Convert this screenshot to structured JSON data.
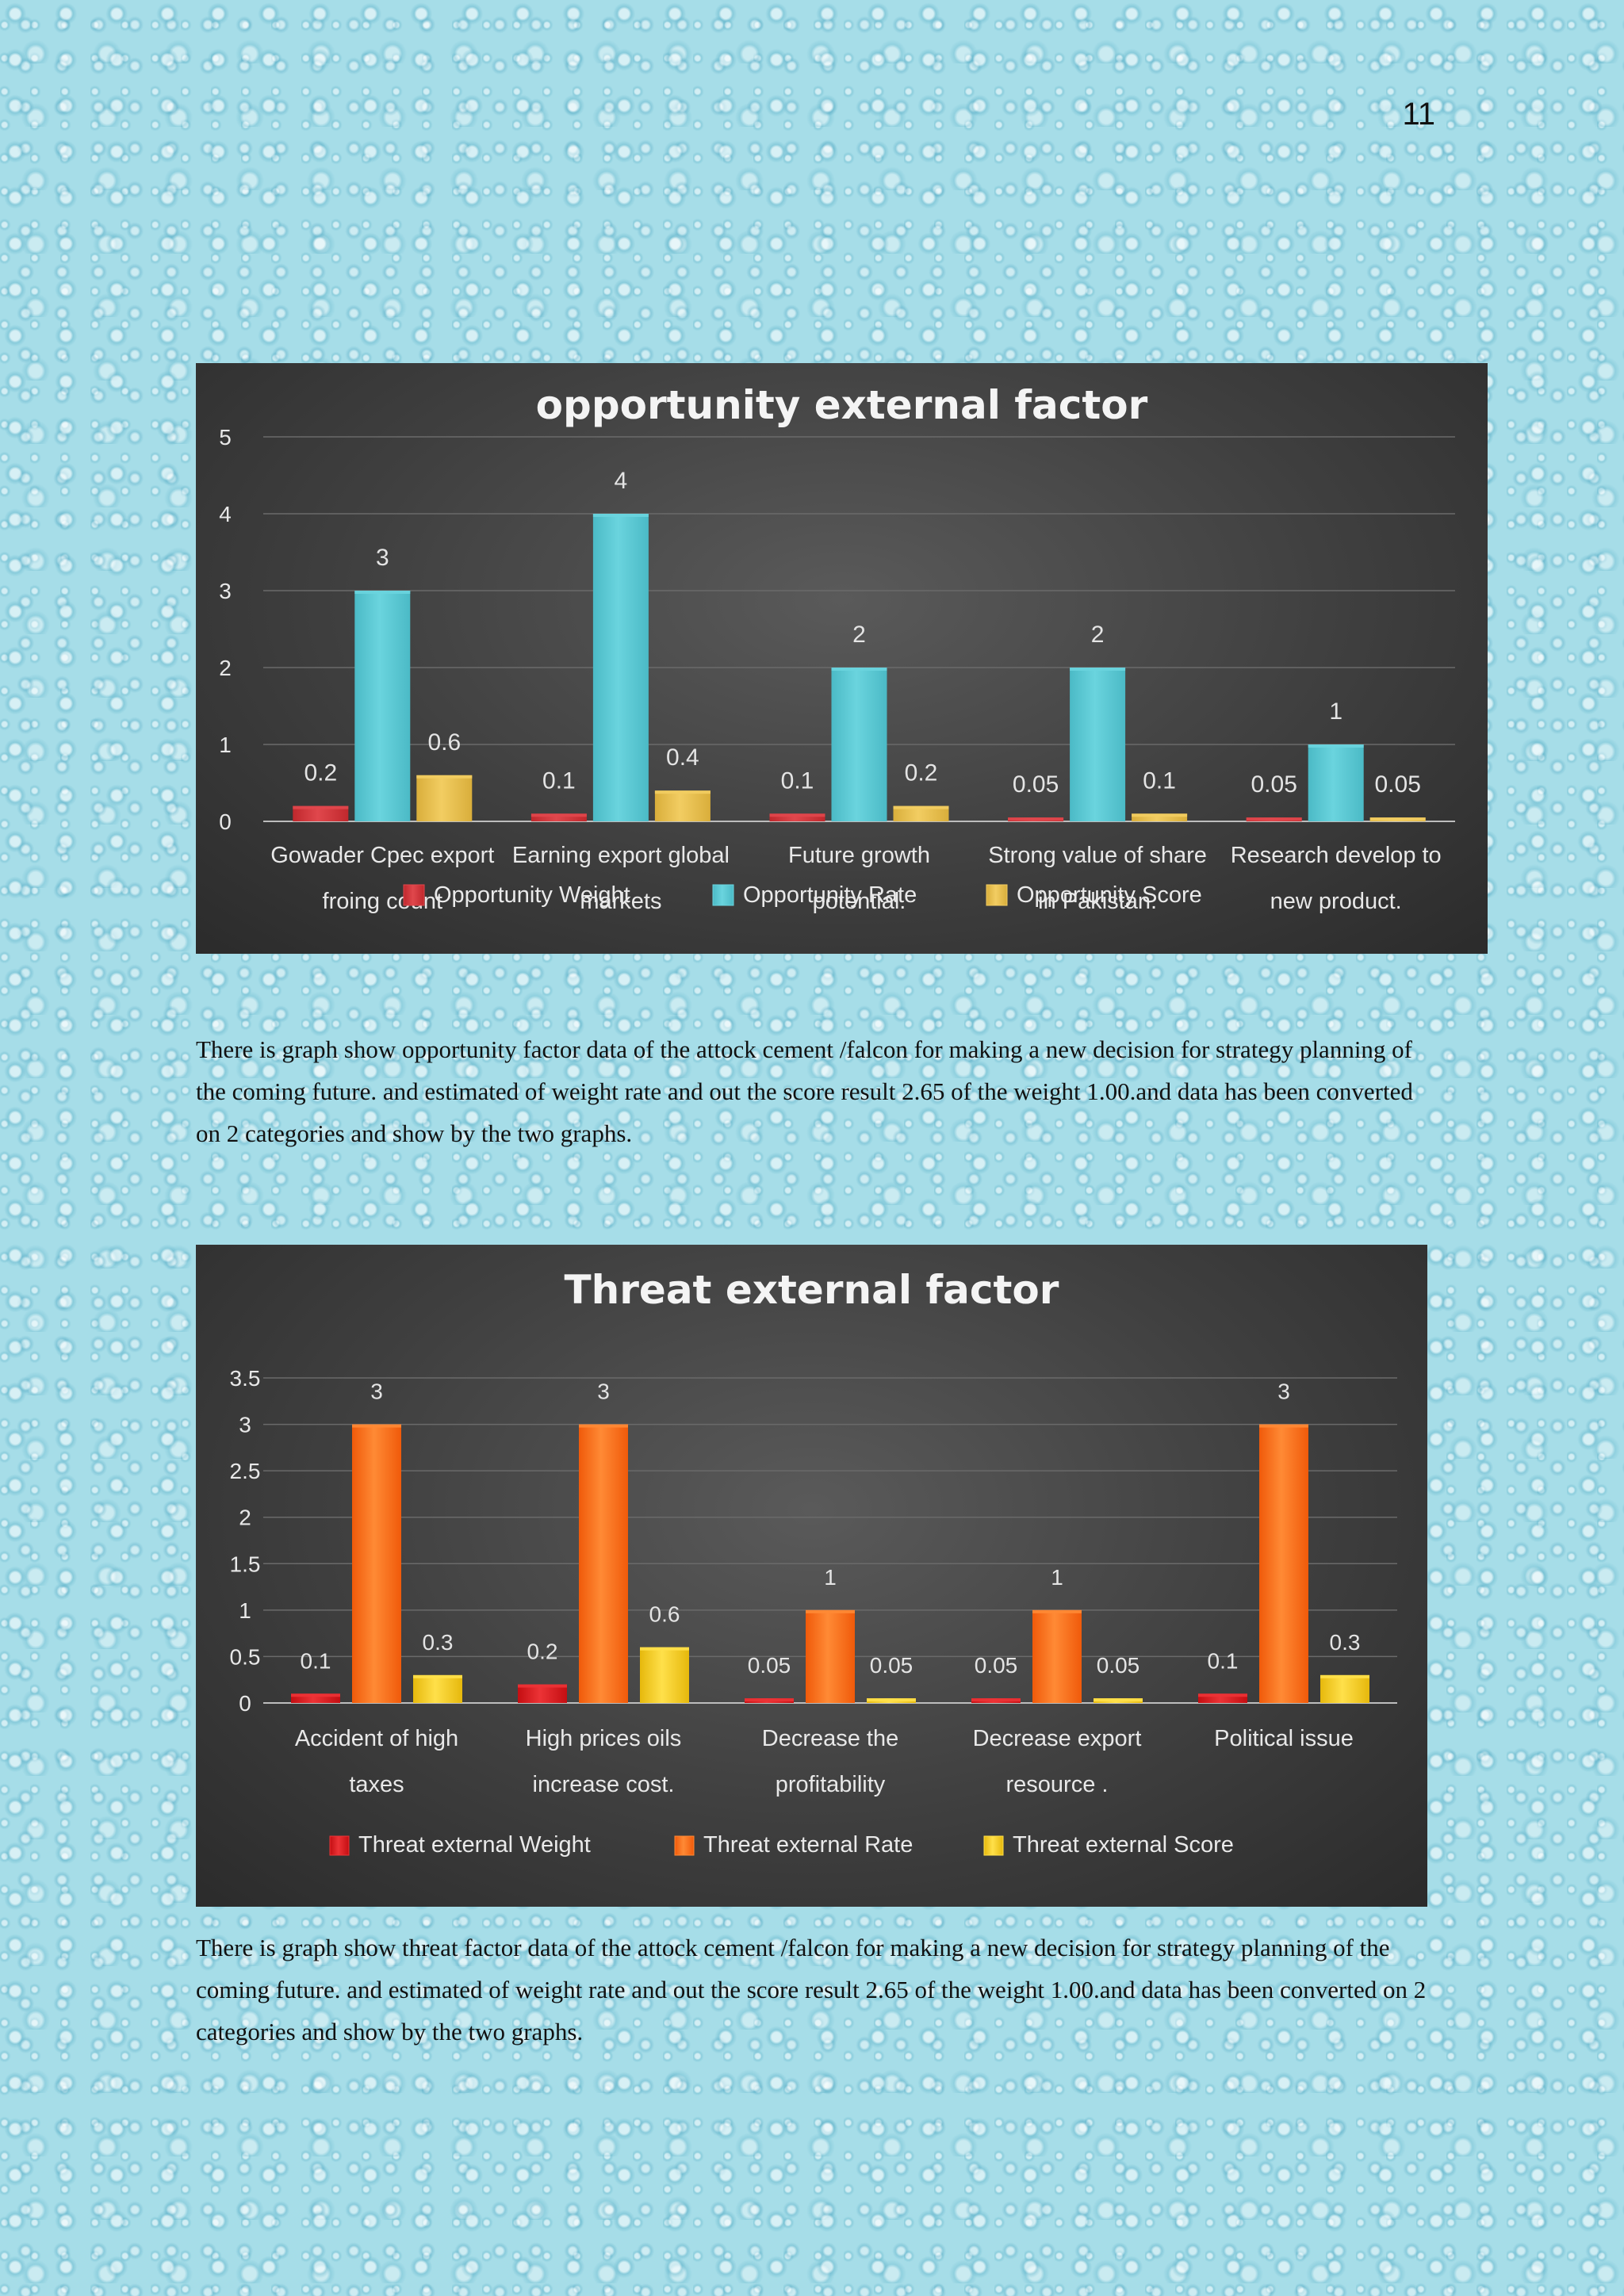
{
  "page": {
    "number": "11"
  },
  "paragraphs": {
    "opportunity": "There is graph show opportunity factor data of the attock cement /falcon for making a new decision for strategy planning of the coming future. and estimated of weight rate and out the score result 2.65 of the weight 1.00.and data has been converted on 2 categories and show by the two graphs.",
    "threat": "There is graph show threat factor data of the attock cement /falcon for making a new decision for strategy planning of the coming future. and estimated of weight rate and out the score result 2.65 of the weight 1.00.and data has been converted on 2 categories and show by the two graphs."
  },
  "chart_data": [
    {
      "type": "bar",
      "title": "opportunity  external  factor",
      "categories": [
        [
          "Gowader Cpec export",
          "froing count"
        ],
        [
          "Earning export global",
          "markets"
        ],
        [
          "Future growth",
          "potential."
        ],
        [
          "Strong value of share",
          "in Pakistan."
        ],
        [
          "Research develop to",
          "new product."
        ]
      ],
      "series": [
        {
          "name": "Opportunity  Weight",
          "values": [
            0.2,
            0.1,
            0.1,
            0.05,
            0.05
          ],
          "color": "#c0282d",
          "color_light": "#e0474c"
        },
        {
          "name": "Opportunity  Rate",
          "values": [
            3,
            4,
            2,
            2,
            1
          ],
          "color": "#4bbac6",
          "color_light": "#6ad4de"
        },
        {
          "name": "Opportunity  Score",
          "values": [
            0.6,
            0.4,
            0.2,
            0.1,
            0.05
          ],
          "color": "#d9ae3b",
          "color_light": "#f2cd62"
        }
      ],
      "ylim": [
        0,
        5
      ],
      "yticks": [
        0,
        1,
        2,
        3,
        4,
        5
      ],
      "ytick_labels": [
        "0",
        "1",
        "2",
        "3",
        "4",
        "5"
      ],
      "grid": true,
      "legend_position": "bottom",
      "xlabel": "",
      "ylabel": ""
    },
    {
      "type": "bar",
      "title": "Threat  external  factor",
      "categories": [
        [
          "Accident of high",
          "taxes"
        ],
        [
          "High prices oils",
          "increase cost."
        ],
        [
          "Decrease the",
          "profitability"
        ],
        [
          "Decrease export",
          "resource ."
        ],
        [
          "Political issue"
        ]
      ],
      "series": [
        {
          "name": "Threat external  Weight",
          "values": [
            0.1,
            0.2,
            0.05,
            0.05,
            0.1
          ],
          "color": "#c40e12",
          "color_light": "#ec3336"
        },
        {
          "name": "Threat external  Rate",
          "values": [
            3,
            3,
            1,
            1,
            3
          ],
          "color": "#f05a0a",
          "color_light": "#ff8a35"
        },
        {
          "name": "Threat external  Score",
          "values": [
            0.3,
            0.6,
            0.05,
            0.05,
            0.3
          ],
          "color": "#e6b80c",
          "color_light": "#ffe04a"
        }
      ],
      "ylim": [
        0,
        3.5
      ],
      "yticks": [
        0,
        0.5,
        1,
        1.5,
        2,
        2.5,
        3,
        3.5
      ],
      "ytick_labels": [
        "0",
        "0.5",
        "1",
        "1.5",
        "2",
        "2.5",
        "3",
        "3.5"
      ],
      "grid": true,
      "legend_position": "bottom",
      "xlabel": "",
      "ylabel": ""
    }
  ]
}
